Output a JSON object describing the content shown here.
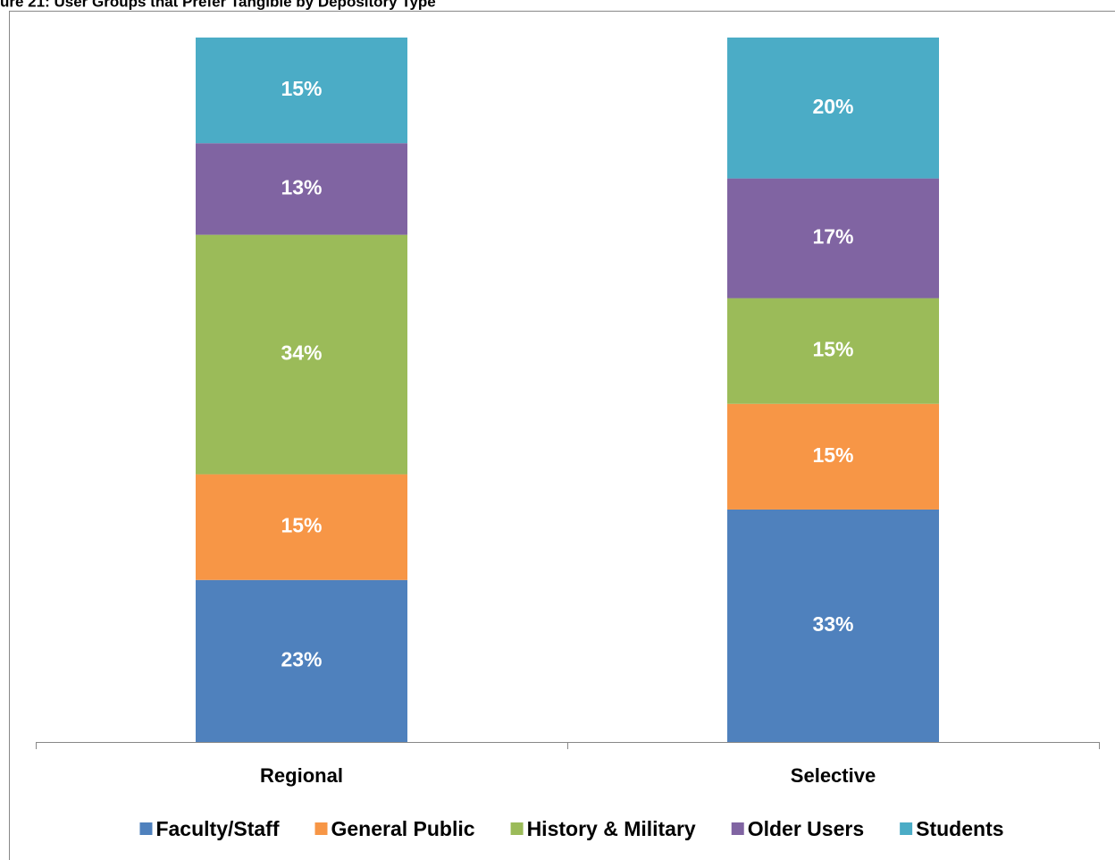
{
  "chart_data": {
    "type": "stacked_bar",
    "title": "ure 21: User Groups that Prefer Tangible by Depository Type",
    "categories": [
      "Regional",
      "Selective"
    ],
    "ylim": [
      0,
      100
    ],
    "series": [
      {
        "name": "Faculty/Staff",
        "color": "#4f81bd",
        "values": [
          23,
          33
        ],
        "value_labels": [
          "23%",
          "33%"
        ]
      },
      {
        "name": "General Public",
        "color": "#f79646",
        "values": [
          15,
          15
        ],
        "value_labels": [
          "15%",
          "15%"
        ]
      },
      {
        "name": "History & Military",
        "color": "#9bbb59",
        "values": [
          34,
          15
        ],
        "value_labels": [
          "34%",
          "15%"
        ]
      },
      {
        "name": "Older Users",
        "color": "#8064a2",
        "values": [
          13,
          17
        ],
        "value_labels": [
          "13%",
          "17%"
        ]
      },
      {
        "name": "Students",
        "color": "#4bacc6",
        "values": [
          15,
          20
        ],
        "value_labels": [
          "15%",
          "20%"
        ]
      }
    ],
    "legend": "bottom"
  }
}
